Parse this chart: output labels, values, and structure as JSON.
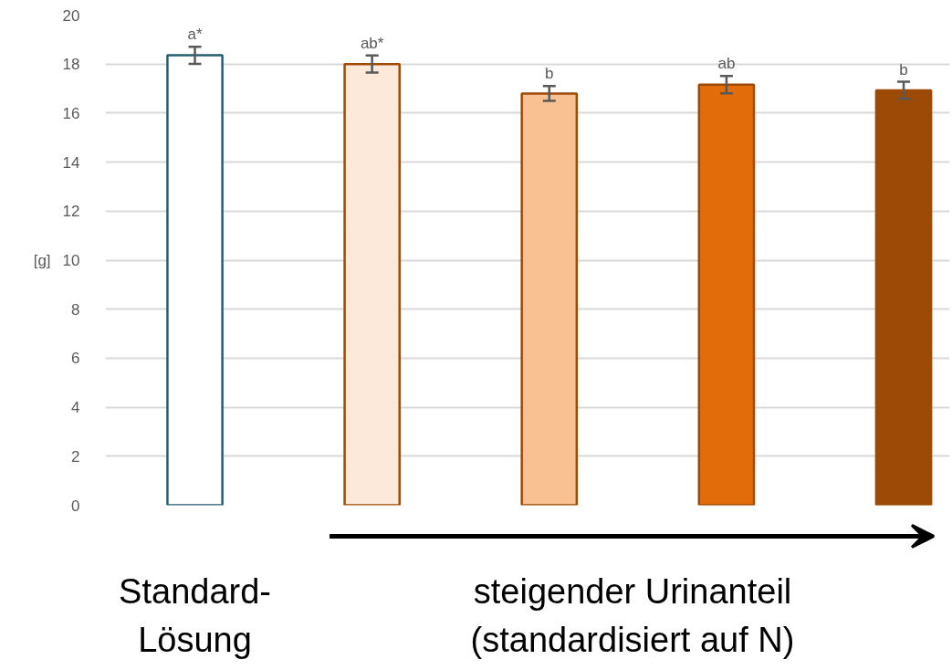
{
  "chart_data": {
    "type": "bar",
    "ylabel": "[g]",
    "categories": [
      null,
      null,
      null,
      null,
      null
    ],
    "values": [
      18.36,
      18.0,
      16.8,
      17.16,
      16.93
    ],
    "errors": [
      0.35,
      0.35,
      0.3,
      0.35,
      0.35
    ],
    "colors": [
      "#ffffff",
      "#fde9d9",
      "#f9c191",
      "#e36c0a",
      "#9c4a06"
    ],
    "ylim": [
      0,
      20
    ],
    "yticks": [
      0,
      2,
      4,
      6,
      8,
      10,
      12,
      14,
      16,
      18,
      20
    ],
    "grid": "y",
    "annotations": [
      "a*",
      "ab*",
      "b",
      "ab",
      "b",
      "Standard-\nLösung",
      "steigender Urinanteil\n(standardisiert auf N)"
    ]
  }
}
